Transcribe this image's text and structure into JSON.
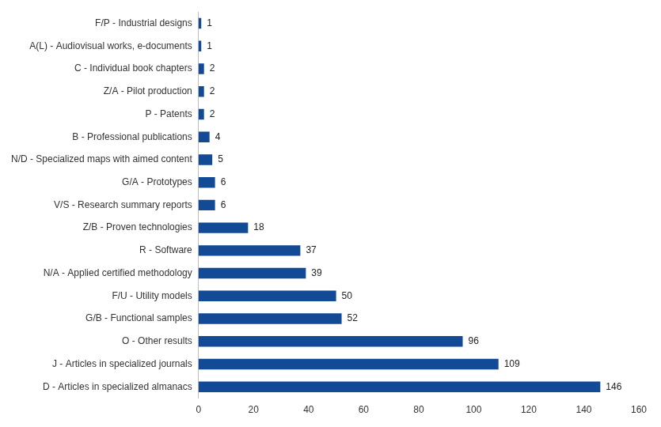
{
  "chart_data": {
    "type": "bar",
    "orientation": "horizontal",
    "categories": [
      "F/P - Industrial designs",
      "A(L) - Audiovisual works, e-documents",
      "C - Individual book chapters",
      "Z/A - Pilot production",
      "P - Patents",
      "B - Professional publications",
      "N/D - Specialized maps with aimed content",
      "G/A - Prototypes",
      "V/S - Research summary reports",
      "Z/B - Proven technologies",
      "R - Software",
      "N/A - Applied certified methodology",
      "F/U - Utility models",
      "G/B - Functional samples",
      "O - Other results",
      "J - Articles in specialized journals",
      "D - Articles in specialized almanacs"
    ],
    "values": [
      1,
      1,
      2,
      2,
      2,
      4,
      5,
      6,
      6,
      18,
      37,
      39,
      50,
      52,
      96,
      109,
      146
    ],
    "color": "#124a96",
    "xlim": [
      0,
      160
    ],
    "xticks": [
      0,
      20,
      40,
      60,
      80,
      100,
      120,
      140,
      160
    ],
    "grid": false,
    "data_labels": true
  }
}
